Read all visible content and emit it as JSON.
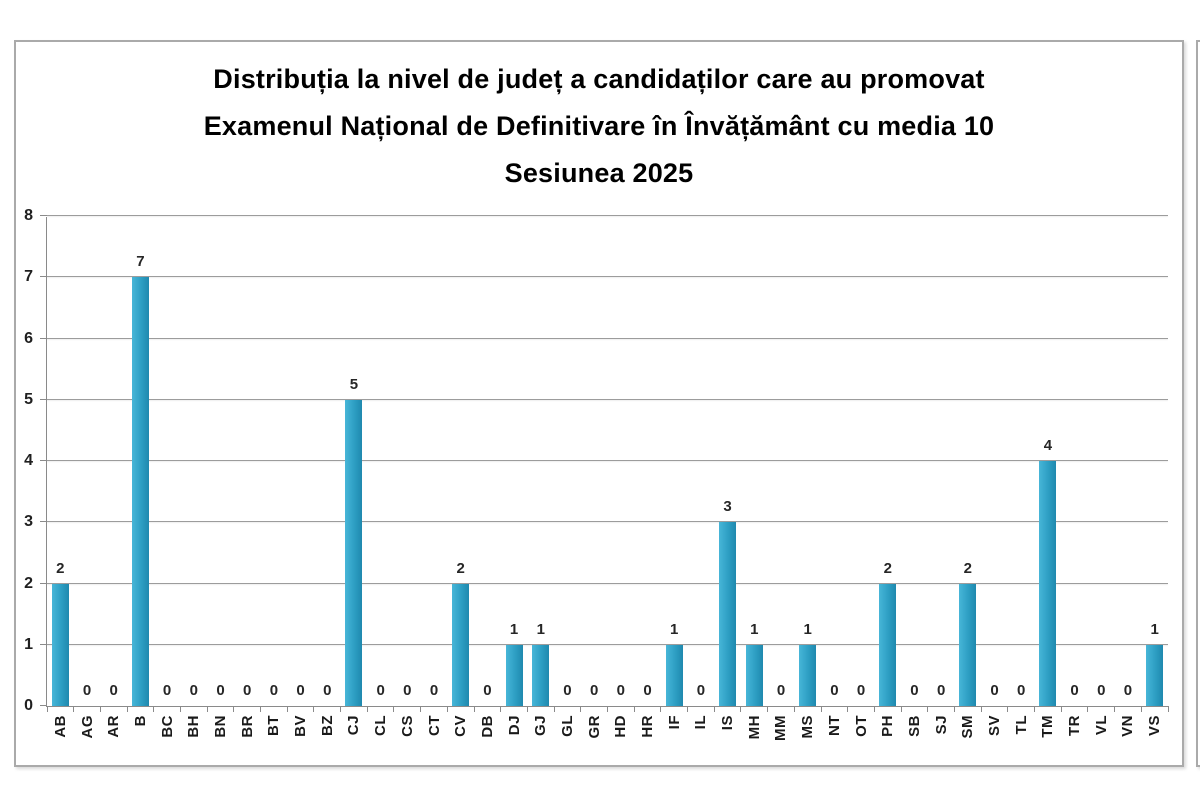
{
  "header": {
    "lines": [
      "Distribuția la nivel de județ a candidaților care au promovat",
      "Examenul Național de Definitivare în Învățământ cu media 10",
      "Sesiunea 2025"
    ]
  },
  "chart_data": {
    "type": "bar",
    "title": "Distribuția la nivel de județ a candidaților care au promovat Examenul Național de Definitivare în Învățământ cu media 10 Sesiunea 2025",
    "categories": [
      "AB",
      "AG",
      "AR",
      "B",
      "BC",
      "BH",
      "BN",
      "BR",
      "BT",
      "BV",
      "BZ",
      "CJ",
      "CL",
      "CS",
      "CT",
      "CV",
      "DB",
      "DJ",
      "GJ",
      "GL",
      "GR",
      "HD",
      "HR",
      "IF",
      "IL",
      "IS",
      "MH",
      "MM",
      "MS",
      "NT",
      "OT",
      "PH",
      "SB",
      "SJ",
      "SM",
      "SV",
      "TL",
      "TM",
      "TR",
      "VL",
      "VN",
      "VS"
    ],
    "values": [
      2,
      0,
      0,
      7,
      0,
      0,
      0,
      0,
      0,
      0,
      0,
      5,
      0,
      0,
      0,
      2,
      0,
      1,
      1,
      0,
      0,
      0,
      0,
      1,
      0,
      3,
      1,
      0,
      1,
      0,
      0,
      2,
      0,
      0,
      2,
      0,
      0,
      4,
      0,
      0,
      0,
      1
    ],
    "xlabel": "",
    "ylabel": "",
    "ylim": [
      0,
      8
    ],
    "yticks": [
      0,
      1,
      2,
      3,
      4,
      5,
      6,
      7,
      8
    ],
    "grid": "horizontal",
    "legend": "none",
    "data_labels": true,
    "colors": {
      "bar_gradient": [
        "#47b6d8",
        "#2d9ec3",
        "#1f89ae"
      ],
      "gridline": "#9c9c9c",
      "axis": "#8a8a8a",
      "text": "#1a1a1a"
    }
  }
}
